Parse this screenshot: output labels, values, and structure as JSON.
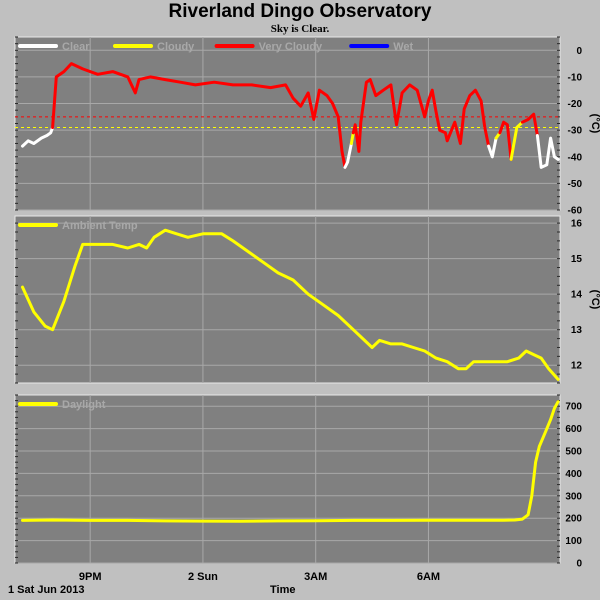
{
  "title": "Riverland Dingo Observatory",
  "subtitle": "Sky is Clear.",
  "date_label": "1 Sat Jun 2013",
  "xlabel": "Time",
  "x_ticks": [
    "9PM",
    "2 Sun",
    "3AM",
    "6AM"
  ],
  "colors": {
    "background": "#c0c0c0",
    "plot_bg": "#808080",
    "grid": "#a8a8a8",
    "clear": "#ffffff",
    "cloudy": "#ffff00",
    "very_cloudy": "#ff0000",
    "wet": "#0000ff",
    "ambient": "#ffff00",
    "daylight": "#ffff00"
  },
  "chart_data": [
    {
      "type": "line",
      "name": "sky",
      "ylabel": "(°C)",
      "ylim": [
        -60,
        5
      ],
      "yticks": [
        0,
        -10,
        -20,
        -30,
        -40,
        -50,
        -60
      ],
      "legend": [
        "Clear",
        "Cloudy",
        "Very Cloudy",
        "Wet"
      ],
      "thresholds": [
        {
          "y": -25,
          "color": "#ff0000"
        },
        {
          "y": -29,
          "color": "#ffff00"
        }
      ],
      "series": [
        {
          "name": "Clear",
          "points": [
            [
              19.2,
              -36
            ],
            [
              19.35,
              -34
            ],
            [
              19.5,
              -35
            ],
            [
              19.7,
              -33
            ],
            [
              19.85,
              -32
            ],
            [
              19.95,
              -31
            ],
            [
              20.0,
              -29
            ]
          ]
        },
        {
          "name": "Very Cloudy",
          "points": [
            [
              20.0,
              -29
            ],
            [
              20.1,
              -10
            ],
            [
              20.3,
              -8
            ],
            [
              20.5,
              -5
            ],
            [
              20.8,
              -7
            ],
            [
              21.2,
              -9
            ],
            [
              21.6,
              -8
            ],
            [
              22.0,
              -10
            ],
            [
              22.1,
              -13
            ],
            [
              22.2,
              -16
            ],
            [
              22.3,
              -11
            ],
            [
              22.6,
              -10
            ],
            [
              23.0,
              -11
            ],
            [
              23.4,
              -12
            ],
            [
              23.8,
              -13
            ],
            [
              24.3,
              -12
            ],
            [
              24.8,
              -13
            ],
            [
              25.3,
              -13
            ],
            [
              25.8,
              -14
            ],
            [
              26.2,
              -13
            ],
            [
              26.4,
              -18
            ],
            [
              26.6,
              -21
            ],
            [
              26.8,
              -16
            ],
            [
              26.95,
              -26
            ],
            [
              27.1,
              -15
            ],
            [
              27.3,
              -17
            ],
            [
              27.45,
              -20
            ],
            [
              27.6,
              -25
            ],
            [
              27.7,
              -38
            ],
            [
              27.78,
              -44
            ]
          ]
        },
        {
          "name": "Clear",
          "points": [
            [
              27.78,
              -44
            ],
            [
              27.85,
              -42
            ],
            [
              27.95,
              -35
            ]
          ]
        },
        {
          "name": "Cloudy",
          "points": [
            [
              27.95,
              -35
            ],
            [
              28.0,
              -31
            ]
          ]
        },
        {
          "name": "Very Cloudy",
          "points": [
            [
              28.0,
              -31
            ],
            [
              28.05,
              -28
            ],
            [
              28.15,
              -38
            ],
            [
              28.2,
              -27
            ],
            [
              28.35,
              -12
            ],
            [
              28.45,
              -11
            ],
            [
              28.6,
              -17
            ],
            [
              28.8,
              -15
            ],
            [
              29.0,
              -13
            ],
            [
              29.15,
              -28
            ],
            [
              29.3,
              -16
            ],
            [
              29.5,
              -13
            ],
            [
              29.7,
              -15
            ],
            [
              29.9,
              -25
            ],
            [
              30.0,
              -19
            ],
            [
              30.1,
              -15
            ],
            [
              30.2,
              -23
            ],
            [
              30.3,
              -30
            ],
            [
              30.45,
              -31
            ],
            [
              30.5,
              -34
            ],
            [
              30.7,
              -27
            ],
            [
              30.85,
              -35
            ],
            [
              30.95,
              -22
            ],
            [
              31.1,
              -17
            ],
            [
              31.25,
              -15
            ],
            [
              31.4,
              -19
            ],
            [
              31.5,
              -29
            ],
            [
              31.6,
              -36
            ]
          ]
        },
        {
          "name": "Clear",
          "points": [
            [
              31.6,
              -36
            ],
            [
              31.7,
              -40
            ],
            [
              31.8,
              -33
            ]
          ]
        },
        {
          "name": "Cloudy",
          "points": [
            [
              31.8,
              -33
            ],
            [
              31.9,
              -31
            ]
          ]
        },
        {
          "name": "Very Cloudy",
          "points": [
            [
              31.9,
              -31
            ],
            [
              32.0,
              -27
            ],
            [
              32.1,
              -28
            ],
            [
              32.2,
              -41
            ]
          ]
        },
        {
          "name": "Cloudy",
          "points": [
            [
              32.2,
              -41
            ],
            [
              32.35,
              -29
            ],
            [
              32.5,
              -27
            ]
          ]
        },
        {
          "name": "Very Cloudy",
          "points": [
            [
              32.5,
              -27
            ],
            [
              32.65,
              -26
            ],
            [
              32.8,
              -24
            ],
            [
              32.9,
              -32
            ]
          ]
        },
        {
          "name": "Clear",
          "points": [
            [
              32.9,
              -32
            ],
            [
              33.0,
              -44
            ],
            [
              33.15,
              -43
            ],
            [
              33.25,
              -33
            ],
            [
              33.35,
              -40
            ],
            [
              33.45,
              -41
            ]
          ]
        }
      ]
    },
    {
      "type": "line",
      "name": "ambient",
      "ylabel": "(°C)",
      "ylim": [
        11.5,
        16.2
      ],
      "yticks": [
        16,
        15,
        14,
        13,
        12
      ],
      "legend": [
        "Ambient Temp"
      ],
      "series": [
        {
          "name": "Ambient Temp",
          "points": [
            [
              19.2,
              14.2
            ],
            [
              19.5,
              13.5
            ],
            [
              19.8,
              13.1
            ],
            [
              20.0,
              13.0
            ],
            [
              20.3,
              13.8
            ],
            [
              20.6,
              14.8
            ],
            [
              20.8,
              15.4
            ],
            [
              21.2,
              15.4
            ],
            [
              21.6,
              15.4
            ],
            [
              22.0,
              15.3
            ],
            [
              22.3,
              15.4
            ],
            [
              22.5,
              15.3
            ],
            [
              22.7,
              15.6
            ],
            [
              23.0,
              15.8
            ],
            [
              23.3,
              15.7
            ],
            [
              23.6,
              15.6
            ],
            [
              24.0,
              15.7
            ],
            [
              24.5,
              15.7
            ],
            [
              24.8,
              15.5
            ],
            [
              25.2,
              15.2
            ],
            [
              25.6,
              14.9
            ],
            [
              26.0,
              14.6
            ],
            [
              26.4,
              14.4
            ],
            [
              26.8,
              14.0
            ],
            [
              27.2,
              13.7
            ],
            [
              27.6,
              13.4
            ],
            [
              28.0,
              13.0
            ],
            [
              28.3,
              12.7
            ],
            [
              28.5,
              12.5
            ],
            [
              28.7,
              12.7
            ],
            [
              29.0,
              12.6
            ],
            [
              29.3,
              12.6
            ],
            [
              29.6,
              12.5
            ],
            [
              29.9,
              12.4
            ],
            [
              30.2,
              12.2
            ],
            [
              30.5,
              12.1
            ],
            [
              30.8,
              11.9
            ],
            [
              31.0,
              11.9
            ],
            [
              31.2,
              12.1
            ],
            [
              31.5,
              12.1
            ],
            [
              31.8,
              12.1
            ],
            [
              32.1,
              12.1
            ],
            [
              32.4,
              12.2
            ],
            [
              32.6,
              12.4
            ],
            [
              32.8,
              12.3
            ],
            [
              33.0,
              12.2
            ],
            [
              33.2,
              11.9
            ],
            [
              33.45,
              11.6
            ]
          ]
        }
      ]
    },
    {
      "type": "line",
      "name": "daylight",
      "ylabel": "",
      "ylim": [
        0,
        750
      ],
      "yticks": [
        700,
        600,
        500,
        400,
        300,
        200,
        100,
        0
      ],
      "legend": [
        "Daylight"
      ],
      "series": [
        {
          "name": "Daylight",
          "points": [
            [
              19.2,
              190
            ],
            [
              20.0,
              192
            ],
            [
              21.0,
              190
            ],
            [
              22.0,
              190
            ],
            [
              23.0,
              188
            ],
            [
              24.0,
              187
            ],
            [
              25.0,
              186
            ],
            [
              26.0,
              188
            ],
            [
              27.0,
              189
            ],
            [
              28.0,
              190
            ],
            [
              29.0,
              190
            ],
            [
              30.0,
              191
            ],
            [
              31.0,
              191
            ],
            [
              32.0,
              191
            ],
            [
              32.3,
              192
            ],
            [
              32.5,
              196
            ],
            [
              32.65,
              215
            ],
            [
              32.75,
              300
            ],
            [
              32.85,
              450
            ],
            [
              32.95,
              520
            ],
            [
              33.1,
              580
            ],
            [
              33.25,
              640
            ],
            [
              33.35,
              690
            ],
            [
              33.45,
              720
            ]
          ]
        }
      ]
    }
  ]
}
